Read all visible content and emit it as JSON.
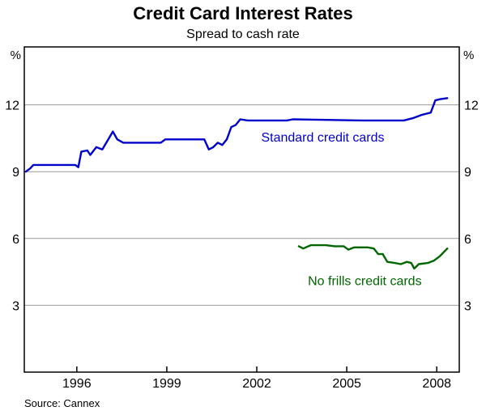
{
  "title": "Credit Card Interest Rates",
  "subtitle": "Spread to cash rate",
  "source_note": "Source: Cannex",
  "chart_data": {
    "type": "line",
    "title": "Credit Card Interest Rates",
    "subtitle": "Spread to cash rate",
    "xlabel": "",
    "ylabel_left": "%",
    "ylabel_right": "%",
    "xlim": [
      1994.25,
      2008.75
    ],
    "ylim": [
      0,
      14.6
    ],
    "grid": true,
    "gridline_color": "#999999",
    "y_gridlines": [
      3,
      6,
      9,
      12
    ],
    "y_tick_labels": [
      "3",
      "6",
      "9",
      "12"
    ],
    "x_ticks": [
      1996,
      1999,
      2002,
      2005,
      2008
    ],
    "x_tick_labels": [
      "1996",
      "1999",
      "2002",
      "2005",
      "2008"
    ],
    "legend_position": "inline-annotations",
    "series": [
      {
        "name": "Standard credit cards",
        "color": "#0000CC",
        "label_pos": [
          2004.2,
          10.35
        ],
        "points": [
          [
            1994.3,
            9.0
          ],
          [
            1994.45,
            9.15
          ],
          [
            1994.55,
            9.3
          ],
          [
            1995.95,
            9.3
          ],
          [
            1996.05,
            9.2
          ],
          [
            1996.15,
            9.9
          ],
          [
            1996.35,
            9.95
          ],
          [
            1996.45,
            9.75
          ],
          [
            1996.65,
            10.1
          ],
          [
            1996.85,
            10.0
          ],
          [
            1997.05,
            10.45
          ],
          [
            1997.2,
            10.8
          ],
          [
            1997.35,
            10.45
          ],
          [
            1997.55,
            10.3
          ],
          [
            1998.8,
            10.3
          ],
          [
            1998.95,
            10.45
          ],
          [
            2000.25,
            10.45
          ],
          [
            2000.4,
            10.0
          ],
          [
            2000.55,
            10.1
          ],
          [
            2000.7,
            10.3
          ],
          [
            2000.85,
            10.2
          ],
          [
            2001.0,
            10.45
          ],
          [
            2001.15,
            11.0
          ],
          [
            2001.3,
            11.1
          ],
          [
            2001.45,
            11.35
          ],
          [
            2001.7,
            11.3
          ],
          [
            2003.0,
            11.3
          ],
          [
            2003.2,
            11.35
          ],
          [
            2005.5,
            11.3
          ],
          [
            2006.9,
            11.3
          ],
          [
            2007.2,
            11.4
          ],
          [
            2007.5,
            11.55
          ],
          [
            2007.8,
            11.65
          ],
          [
            2007.95,
            12.2
          ],
          [
            2008.1,
            12.25
          ],
          [
            2008.35,
            12.3
          ]
        ]
      },
      {
        "name": "No frills credit cards",
        "color": "#006600",
        "label_pos": [
          2005.6,
          3.9
        ],
        "points": [
          [
            2003.4,
            5.65
          ],
          [
            2003.55,
            5.55
          ],
          [
            2003.8,
            5.7
          ],
          [
            2004.3,
            5.7
          ],
          [
            2004.6,
            5.65
          ],
          [
            2004.9,
            5.65
          ],
          [
            2005.05,
            5.5
          ],
          [
            2005.25,
            5.6
          ],
          [
            2005.7,
            5.6
          ],
          [
            2005.9,
            5.55
          ],
          [
            2006.05,
            5.3
          ],
          [
            2006.2,
            5.3
          ],
          [
            2006.35,
            4.95
          ],
          [
            2006.6,
            4.9
          ],
          [
            2006.8,
            4.85
          ],
          [
            2007.0,
            4.95
          ],
          [
            2007.15,
            4.9
          ],
          [
            2007.25,
            4.65
          ],
          [
            2007.4,
            4.85
          ],
          [
            2007.7,
            4.9
          ],
          [
            2007.9,
            5.0
          ],
          [
            2008.1,
            5.2
          ],
          [
            2008.35,
            5.55
          ]
        ]
      }
    ]
  }
}
